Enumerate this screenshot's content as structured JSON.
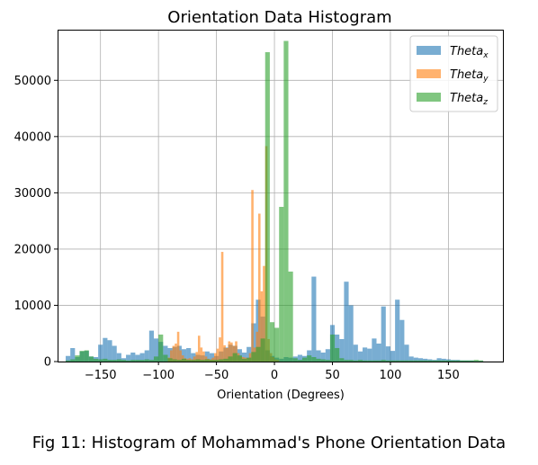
{
  "caption": "Fig 11: Histogram of Mohammad's Phone Orientation Data",
  "colors": {
    "theta_x": "#1f77b4",
    "theta_y": "#ff7f0e",
    "theta_z": "#2ca02c"
  },
  "chart_data": {
    "type": "histogram",
    "title": "Orientation Data Histogram",
    "xlabel": "Orientation (Degrees)",
    "ylabel": "",
    "xlim": [
      -187,
      197
    ],
    "ylim": [
      0,
      59000
    ],
    "xticks": [
      -150,
      -100,
      -50,
      0,
      50,
      100,
      150
    ],
    "yticks": [
      0,
      10000,
      20000,
      30000,
      40000,
      50000
    ],
    "grid": true,
    "legend_position": "top-right",
    "bar_opacity": 0.6,
    "series": [
      {
        "key": "theta_x",
        "legend_base": "Theta",
        "legend_sub": "x",
        "bin_width": 4,
        "bins": [
          [
            -180,
            1000
          ],
          [
            -176,
            2400
          ],
          [
            -172,
            800
          ],
          [
            -168,
            1800
          ],
          [
            -164,
            1900
          ],
          [
            -160,
            900
          ],
          [
            -156,
            800
          ],
          [
            -152,
            3000
          ],
          [
            -148,
            4200
          ],
          [
            -144,
            3800
          ],
          [
            -140,
            2800
          ],
          [
            -136,
            1500
          ],
          [
            -132,
            600
          ],
          [
            -128,
            1200
          ],
          [
            -124,
            1600
          ],
          [
            -120,
            1200
          ],
          [
            -116,
            1500
          ],
          [
            -112,
            2000
          ],
          [
            -108,
            5500
          ],
          [
            -104,
            4100
          ],
          [
            -100,
            3500
          ],
          [
            -96,
            2800
          ],
          [
            -92,
            2400
          ],
          [
            -88,
            2600
          ],
          [
            -84,
            2800
          ],
          [
            -80,
            2200
          ],
          [
            -76,
            2400
          ],
          [
            -72,
            1500
          ],
          [
            -68,
            1200
          ],
          [
            -64,
            1100
          ],
          [
            -60,
            1800
          ],
          [
            -56,
            1500
          ],
          [
            -52,
            1000
          ],
          [
            -48,
            1800
          ],
          [
            -44,
            2500
          ],
          [
            -40,
            3000
          ],
          [
            -36,
            2800
          ],
          [
            -32,
            2200
          ],
          [
            -28,
            1600
          ],
          [
            -24,
            2600
          ],
          [
            -20,
            6800
          ],
          [
            -16,
            11000
          ],
          [
            -12,
            8000
          ],
          [
            -8,
            2000
          ],
          [
            -4,
            1000
          ],
          [
            0,
            700
          ],
          [
            4,
            500
          ],
          [
            8,
            800
          ],
          [
            12,
            700
          ],
          [
            16,
            900
          ],
          [
            20,
            1200
          ],
          [
            24,
            1000
          ],
          [
            28,
            2000
          ],
          [
            32,
            15100
          ],
          [
            36,
            2000
          ],
          [
            40,
            1600
          ],
          [
            44,
            2200
          ],
          [
            48,
            6500
          ],
          [
            52,
            4800
          ],
          [
            56,
            4000
          ],
          [
            60,
            14200
          ],
          [
            64,
            10000
          ],
          [
            68,
            3000
          ],
          [
            72,
            1800
          ],
          [
            76,
            2500
          ],
          [
            80,
            2300
          ],
          [
            84,
            4100
          ],
          [
            88,
            3200
          ],
          [
            92,
            9800
          ],
          [
            96,
            2700
          ],
          [
            100,
            1900
          ],
          [
            104,
            11000
          ],
          [
            108,
            7400
          ],
          [
            112,
            3000
          ],
          [
            116,
            900
          ],
          [
            120,
            700
          ],
          [
            124,
            600
          ],
          [
            128,
            500
          ],
          [
            132,
            400
          ],
          [
            136,
            300
          ],
          [
            140,
            600
          ],
          [
            144,
            500
          ],
          [
            148,
            400
          ],
          [
            152,
            300
          ],
          [
            156,
            300
          ],
          [
            160,
            200
          ],
          [
            164,
            200
          ],
          [
            168,
            200
          ],
          [
            172,
            100
          ],
          [
            176,
            100
          ]
        ]
      },
      {
        "key": "theta_y",
        "legend_base": "Theta",
        "legend_sub": "y",
        "bin_width": 2,
        "bins": [
          [
            -92,
            700
          ],
          [
            -90,
            2000
          ],
          [
            -88,
            2800
          ],
          [
            -86,
            3200
          ],
          [
            -84,
            5300
          ],
          [
            -82,
            2000
          ],
          [
            -80,
            1100
          ],
          [
            -78,
            600
          ],
          [
            -76,
            500
          ],
          [
            -74,
            600
          ],
          [
            -72,
            400
          ],
          [
            -70,
            900
          ],
          [
            -68,
            1700
          ],
          [
            -66,
            4600
          ],
          [
            -64,
            2500
          ],
          [
            -62,
            1800
          ],
          [
            -60,
            900
          ],
          [
            -58,
            500
          ],
          [
            -56,
            400
          ],
          [
            -54,
            700
          ],
          [
            -52,
            1500
          ],
          [
            -50,
            2300
          ],
          [
            -48,
            4300
          ],
          [
            -46,
            19500
          ],
          [
            -44,
            2900
          ],
          [
            -42,
            2400
          ],
          [
            -40,
            3600
          ],
          [
            -38,
            3400
          ],
          [
            -36,
            2800
          ],
          [
            -34,
            3600
          ],
          [
            -32,
            1500
          ],
          [
            -30,
            900
          ],
          [
            -28,
            800
          ],
          [
            -26,
            700
          ],
          [
            -24,
            600
          ],
          [
            -22,
            1500
          ],
          [
            -20,
            30500
          ],
          [
            -18,
            2500
          ],
          [
            -16,
            5300
          ],
          [
            -14,
            26300
          ],
          [
            -12,
            12500
          ],
          [
            -10,
            17000
          ],
          [
            -8,
            38300
          ],
          [
            -6,
            4000
          ],
          [
            -4,
            1500
          ],
          [
            -2,
            800
          ],
          [
            0,
            400
          ],
          [
            2,
            300
          ]
        ]
      },
      {
        "key": "theta_z",
        "legend_base": "Theta",
        "legend_sub": "z",
        "bin_width": 4,
        "bins": [
          [
            -180,
            200
          ],
          [
            -176,
            400
          ],
          [
            -172,
            1100
          ],
          [
            -168,
            1900
          ],
          [
            -164,
            2000
          ],
          [
            -160,
            900
          ],
          [
            -156,
            500
          ],
          [
            -152,
            400
          ],
          [
            -148,
            500
          ],
          [
            -144,
            300
          ],
          [
            -140,
            300
          ],
          [
            -136,
            400
          ],
          [
            -132,
            300
          ],
          [
            -128,
            200
          ],
          [
            -124,
            300
          ],
          [
            -120,
            300
          ],
          [
            -116,
            300
          ],
          [
            -112,
            400
          ],
          [
            -108,
            300
          ],
          [
            -104,
            900
          ],
          [
            -100,
            4800
          ],
          [
            -96,
            1200
          ],
          [
            -92,
            600
          ],
          [
            -88,
            400
          ],
          [
            -84,
            300
          ],
          [
            -80,
            500
          ],
          [
            -76,
            300
          ],
          [
            -72,
            300
          ],
          [
            -68,
            400
          ],
          [
            -64,
            300
          ],
          [
            -60,
            400
          ],
          [
            -56,
            300
          ],
          [
            -52,
            300
          ],
          [
            -48,
            400
          ],
          [
            -44,
            500
          ],
          [
            -40,
            900
          ],
          [
            -36,
            1500
          ],
          [
            -32,
            1100
          ],
          [
            -28,
            500
          ],
          [
            -24,
            700
          ],
          [
            -20,
            1700
          ],
          [
            -16,
            2600
          ],
          [
            -12,
            4100
          ],
          [
            -8,
            55000
          ],
          [
            -4,
            7000
          ],
          [
            0,
            6000
          ],
          [
            4,
            27500
          ],
          [
            8,
            57000
          ],
          [
            12,
            16000
          ],
          [
            16,
            600
          ],
          [
            20,
            300
          ],
          [
            24,
            700
          ],
          [
            28,
            1100
          ],
          [
            32,
            800
          ],
          [
            36,
            500
          ],
          [
            40,
            400
          ],
          [
            44,
            300
          ],
          [
            48,
            4800
          ],
          [
            52,
            2400
          ],
          [
            56,
            600
          ],
          [
            60,
            300
          ],
          [
            64,
            300
          ],
          [
            68,
            200
          ],
          [
            72,
            300
          ],
          [
            76,
            200
          ],
          [
            80,
            200
          ],
          [
            84,
            200
          ],
          [
            88,
            200
          ],
          [
            92,
            300
          ],
          [
            96,
            200
          ],
          [
            100,
            200
          ],
          [
            104,
            200
          ],
          [
            108,
            200
          ],
          [
            112,
            200
          ],
          [
            116,
            200
          ],
          [
            120,
            200
          ],
          [
            124,
            200
          ],
          [
            128,
            200
          ],
          [
            132,
            200
          ],
          [
            136,
            200
          ],
          [
            140,
            200
          ],
          [
            144,
            200
          ],
          [
            148,
            200
          ],
          [
            152,
            200
          ],
          [
            156,
            200
          ],
          [
            160,
            200
          ],
          [
            164,
            200
          ],
          [
            168,
            200
          ],
          [
            172,
            300
          ],
          [
            176,
            200
          ]
        ]
      }
    ]
  }
}
